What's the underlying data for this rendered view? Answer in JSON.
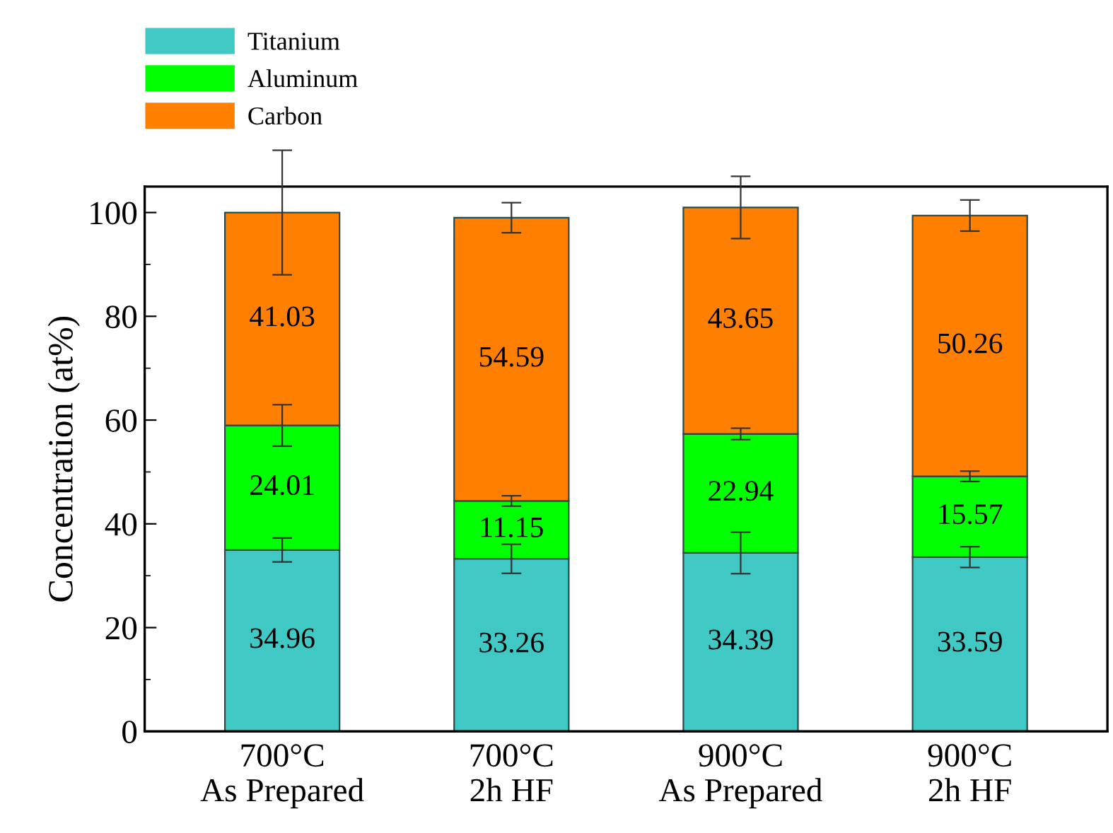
{
  "chart_data": {
    "type": "bar",
    "stacked": true,
    "ylabel": "Concentration (at%)",
    "categories": [
      "700°C\nAs Prepared",
      "700°C\n2h HF",
      "900°C\nAs Prepared",
      "900°C\n2h HF"
    ],
    "series": [
      {
        "name": "Titanium",
        "color": "#40c8c4",
        "values": [
          34.96,
          33.26,
          34.39,
          33.59
        ],
        "errors": [
          2.3,
          2.8,
          4,
          2
        ]
      },
      {
        "name": "Aluminum",
        "color": "#00ff00",
        "values": [
          24.01,
          11.15,
          22.94,
          15.57
        ],
        "errors": [
          4,
          1,
          1.1,
          1
        ]
      },
      {
        "name": "Carbon",
        "color": "#ff7f00",
        "values": [
          41.03,
          54.59,
          43.65,
          50.26
        ],
        "errors": [
          12,
          2.9,
          6,
          3
        ]
      }
    ],
    "ylim": [
      0,
      105
    ],
    "yticks": [
      0,
      20,
      40,
      60,
      80,
      100
    ],
    "data_labels": true,
    "legend": "top left",
    "grid": false
  }
}
